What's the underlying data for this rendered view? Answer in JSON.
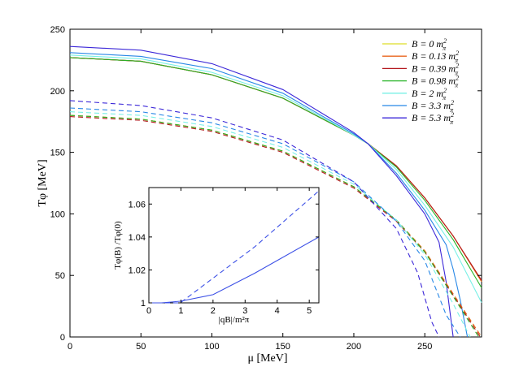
{
  "chart_data": [
    {
      "type": "line",
      "title": "",
      "xlabel": "μ  [MeV]",
      "ylabel": "Tφ  [MeV]",
      "xlim": [
        0,
        290
      ],
      "ylim": [
        0,
        250
      ],
      "xticks": [
        "0",
        "50",
        "100",
        "150",
        "200",
        "250"
      ],
      "yticks": [
        "0",
        "50",
        "100",
        "150",
        "200",
        "250"
      ],
      "grid": false,
      "legend_position": "top-right",
      "series": [
        {
          "name": "B = 0 m²π",
          "color": "#dede28",
          "style": "solid",
          "x": [
            0,
            50,
            100,
            150,
            180,
            200,
            210,
            230,
            250,
            270,
            290
          ],
          "y": [
            227,
            224,
            213,
            194,
            176,
            164,
            157,
            139,
            113,
            82,
            45
          ]
        },
        {
          "name": "B = 0.13 m²π",
          "color": "#e8641e",
          "style": "solid",
          "x": [
            0,
            50,
            100,
            150,
            180,
            200,
            210,
            230,
            250,
            270,
            290
          ],
          "y": [
            227,
            224,
            213,
            194,
            176,
            164,
            157,
            139,
            113,
            82,
            45
          ]
        },
        {
          "name": "B = 0.39 m²π",
          "color": "#b4181e",
          "style": "solid",
          "x": [
            0,
            50,
            100,
            150,
            180,
            200,
            210,
            230,
            250,
            270,
            290
          ],
          "y": [
            227,
            224,
            213,
            194,
            176,
            164,
            157,
            139,
            113,
            82,
            46
          ]
        },
        {
          "name": "B = 0.98 m²π",
          "color": "#28b428",
          "style": "solid",
          "x": [
            0,
            50,
            100,
            150,
            180,
            200,
            210,
            230,
            250,
            270,
            290
          ],
          "y": [
            227,
            224,
            213,
            194,
            176,
            164,
            157,
            138,
            111,
            79,
            40
          ]
        },
        {
          "name": "B = 2 m²π",
          "color": "#78f0e6",
          "style": "solid",
          "x": [
            0,
            50,
            100,
            150,
            180,
            200,
            210,
            230,
            250,
            270,
            290
          ],
          "y": [
            229,
            226,
            215,
            196,
            177,
            164,
            157,
            136,
            107,
            73,
            28
          ]
        },
        {
          "name": "B = 3.3 m²π",
          "color": "#2888e6",
          "style": "solid",
          "x": [
            0,
            50,
            100,
            150,
            180,
            200,
            210,
            230,
            250,
            265,
            270,
            275,
            280
          ],
          "y": [
            231,
            228,
            218,
            198,
            178,
            165,
            157,
            133,
            103,
            75,
            55,
            30,
            0
          ]
        },
        {
          "name": "B = 5.3 m²π",
          "color": "#3c28d8",
          "style": "solid",
          "x": [
            0,
            50,
            100,
            150,
            180,
            200,
            210,
            230,
            250,
            260,
            265,
            270
          ],
          "y": [
            236,
            233,
            222,
            201,
            180,
            166,
            157,
            131,
            100,
            77,
            45,
            0
          ]
        },
        {
          "name": "",
          "color": "#dede28",
          "style": "dashed",
          "x": [
            0,
            50,
            100,
            150,
            200,
            230,
            250,
            270,
            290
          ],
          "y": [
            180,
            177,
            168,
            151,
            122,
            95,
            70,
            35,
            0
          ]
        },
        {
          "name": "",
          "color": "#e8641e",
          "style": "dashed",
          "x": [
            0,
            50,
            100,
            150,
            200,
            230,
            250,
            270,
            290
          ],
          "y": [
            180,
            177,
            168,
            151,
            122,
            95,
            70,
            35,
            0
          ]
        },
        {
          "name": "",
          "color": "#b4181e",
          "style": "dashed",
          "x": [
            0,
            50,
            100,
            150,
            200,
            230,
            250,
            270,
            289
          ],
          "y": [
            179,
            176,
            167,
            150,
            121,
            94,
            69,
            34,
            0
          ]
        },
        {
          "name": "",
          "color": "#28b428",
          "style": "dashed",
          "x": [
            0,
            50,
            100,
            150,
            200,
            230,
            250,
            270,
            288
          ],
          "y": [
            180,
            177,
            168,
            151,
            122,
            95,
            69,
            33,
            0
          ]
        },
        {
          "name": "",
          "color": "#78f0e6",
          "style": "dashed",
          "x": [
            0,
            50,
            100,
            150,
            200,
            230,
            250,
            270,
            282
          ],
          "y": [
            183,
            180,
            171,
            154,
            124,
            95,
            67,
            27,
            0
          ]
        },
        {
          "name": "",
          "color": "#2888e6",
          "style": "dashed",
          "x": [
            0,
            50,
            100,
            150,
            200,
            230,
            250,
            265,
            275
          ],
          "y": [
            186,
            183,
            174,
            157,
            126,
            94,
            62,
            18,
            0
          ]
        },
        {
          "name": "",
          "color": "#3c28d8",
          "style": "dashed",
          "x": [
            0,
            50,
            100,
            150,
            200,
            230,
            245,
            255,
            260
          ],
          "y": [
            192,
            188,
            178,
            160,
            126,
            88,
            52,
            12,
            0
          ]
        }
      ]
    },
    {
      "type": "line",
      "title": "",
      "xlabel": "|qB|/m²π",
      "ylabel": "Tφ(B)  /Tφ(0)",
      "xlim": [
        0,
        5.3
      ],
      "ylim": [
        1,
        1.07
      ],
      "xticks": [
        "0",
        "1",
        "2",
        "3",
        "4",
        "5"
      ],
      "yticks": [
        "1",
        "1.02",
        "1.04",
        "1.06"
      ],
      "series": [
        {
          "name": "",
          "color": "#3c50e6",
          "style": "solid",
          "x": [
            0,
            0.13,
            0.39,
            0.98,
            2,
            3.3,
            5.3
          ],
          "y": [
            1.0,
            1.0,
            1.0,
            1.001,
            1.005,
            1.018,
            1.04
          ]
        },
        {
          "name": "",
          "color": "#3c50e6",
          "style": "dashed",
          "x": [
            0,
            0.13,
            0.39,
            0.98,
            2,
            3.3,
            5.3
          ],
          "y": [
            1.0,
            1.0,
            0.999,
            1.0,
            1.015,
            1.034,
            1.068
          ]
        }
      ]
    }
  ],
  "legend": {
    "items": [
      {
        "label": "B = 0 m",
        "sup": "2",
        "sub": "π",
        "color": "#dede28"
      },
      {
        "label": "B = 0.13 m",
        "sup": "2",
        "sub": "π",
        "color": "#e8641e"
      },
      {
        "label": "B = 0.39 m",
        "sup": "2",
        "sub": "π",
        "color": "#b4181e"
      },
      {
        "label": "B = 0.98 m",
        "sup": "2",
        "sub": "π",
        "color": "#28b428"
      },
      {
        "label": "B = 2 m",
        "sup": "2",
        "sub": "π",
        "color": "#78f0e6"
      },
      {
        "label": "B = 3.3 m",
        "sup": "2",
        "sub": "π",
        "color": "#2888e6"
      },
      {
        "label": "B = 5.3 m",
        "sup": "2",
        "sub": "π",
        "color": "#3c28d8"
      }
    ]
  },
  "labels": {
    "main_x": "μ  [MeV]",
    "main_y": "Tφ  [MeV]",
    "inset_x": "|qB|/m²π",
    "inset_y": "Tφ(B)  /Tφ(0)"
  }
}
